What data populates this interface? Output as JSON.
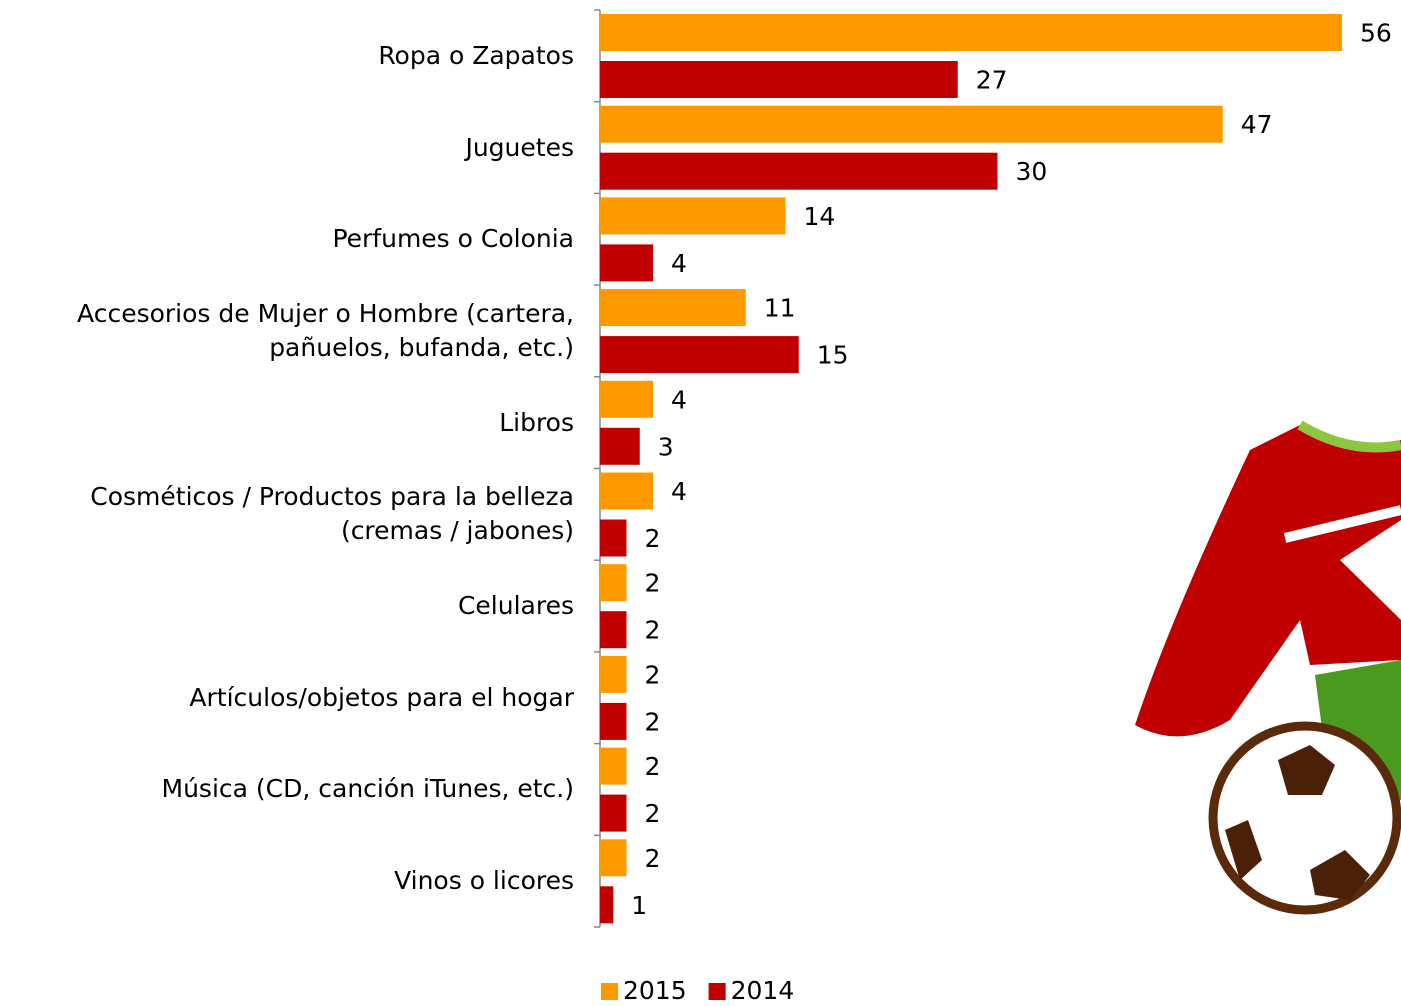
{
  "chart_data": {
    "type": "bar",
    "orientation": "horizontal",
    "categories": [
      "Ropa o Zapatos",
      "Juguetes",
      "Perfumes o Colonia",
      "Accesorios de Mujer o Hombre (cartera,\npañuelos, bufanda, etc.)",
      "Libros",
      "Cosméticos / Productos para la belleza\n(cremas / jabones)",
      "Celulares",
      "Artículos/objetos para el hogar",
      "Música (CD, canción iTunes, etc.)",
      "Vinos o licores"
    ],
    "series": [
      {
        "name": "2015",
        "color": "#ff9900",
        "values": [
          56,
          47,
          14,
          11,
          4,
          4,
          2,
          2,
          2,
          2
        ]
      },
      {
        "name": "2014",
        "color": "#c00000",
        "values": [
          27,
          30,
          4,
          15,
          3,
          2,
          2,
          2,
          2,
          1
        ]
      }
    ],
    "legend": "bottom"
  }
}
